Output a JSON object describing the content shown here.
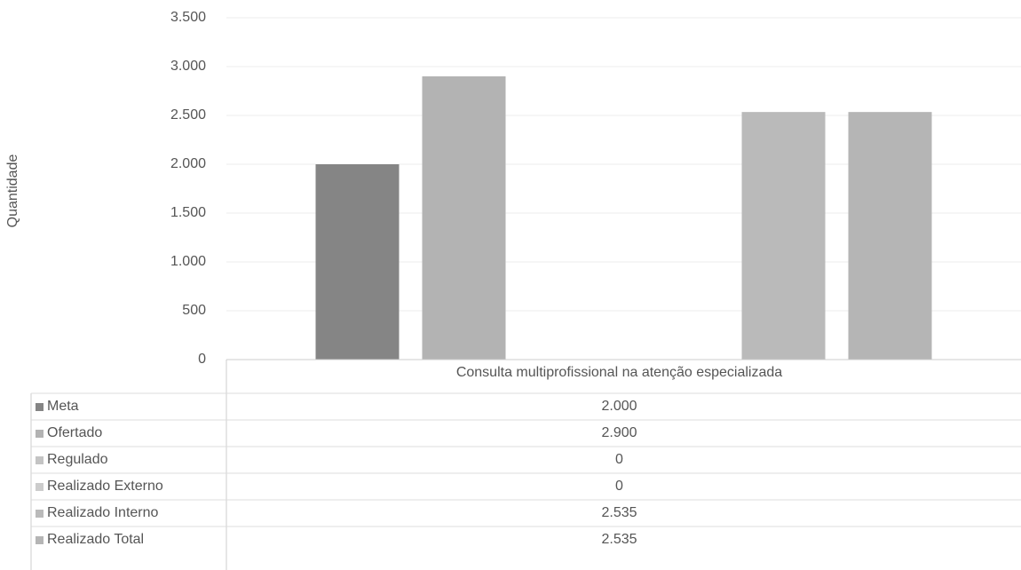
{
  "chart_data": {
    "type": "bar",
    "y_label": "Quantidade",
    "categories": [
      "Consulta multiprofissional na atenção especializada"
    ],
    "series": [
      {
        "name": "Meta",
        "color": "#858585",
        "values": [
          2000
        ],
        "value_labels": [
          "2.000"
        ]
      },
      {
        "name": "Ofertado",
        "color": "#b3b3b3",
        "values": [
          2900
        ],
        "value_labels": [
          "2.900"
        ]
      },
      {
        "name": "Regulado",
        "color": "#c4c4c4",
        "values": [
          0
        ],
        "value_labels": [
          "0"
        ]
      },
      {
        "name": "Realizado Externo",
        "color": "#cccccc",
        "values": [
          0
        ],
        "value_labels": [
          "0"
        ]
      },
      {
        "name": "Realizado Interno",
        "color": "#bababa",
        "values": [
          2535
        ],
        "value_labels": [
          "2.535"
        ]
      },
      {
        "name": "Realizado Total",
        "color": "#b5b5b5",
        "values": [
          2535
        ],
        "value_labels": [
          "2.535"
        ]
      }
    ],
    "ylim": [
      0,
      3500
    ],
    "yticks": [
      0,
      500,
      {
        "value": 1000,
        "label": "1.000"
      },
      {
        "value": 1500,
        "label": "1.500"
      },
      {
        "value": 2000,
        "label": "2.000"
      },
      {
        "value": 2500,
        "label": "2.500"
      },
      {
        "value": 3000,
        "label": "3.000"
      },
      {
        "value": 3500,
        "label": "3.500"
      }
    ],
    "grid": true
  }
}
